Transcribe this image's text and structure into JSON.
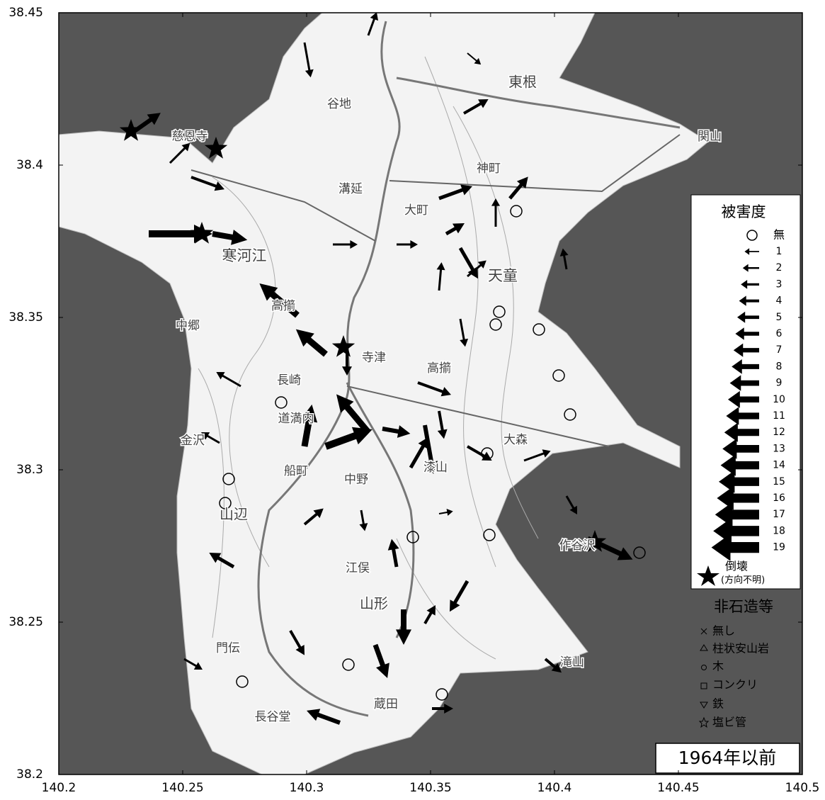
{
  "map": {
    "xlim": [
      140.2,
      140.5
    ],
    "ylim": [
      38.2,
      38.45
    ],
    "xticks": [
      140.2,
      140.25,
      140.3,
      140.35,
      140.4,
      140.45,
      140.5
    ],
    "yticks": [
      38.2,
      38.25,
      38.3,
      38.35,
      38.4,
      38.45
    ]
  },
  "places": [
    "東根",
    "谷地",
    "慈恩寺",
    "関山",
    "神町",
    "溝延",
    "大町",
    "寒河江",
    "天童",
    "中郷",
    "高擶",
    "寺津",
    "高擶",
    "長崎",
    "道満内",
    "金沢",
    "大森",
    "船町",
    "中野",
    "漆山",
    "山辺",
    "作谷沢",
    "江俣",
    "山形",
    "門伝",
    "滝山",
    "蔵田",
    "長谷堂"
  ],
  "legend": {
    "title": "被害度",
    "none": "無",
    "levels": [
      1,
      2,
      3,
      4,
      5,
      6,
      7,
      8,
      9,
      10,
      11,
      12,
      13,
      14,
      15,
      16,
      17,
      18,
      19
    ],
    "collapse": "倒壊",
    "collapse_note": "(方向不明)",
    "material_title": "非石造等",
    "materials": [
      "無し",
      "柱状安山岩",
      "木",
      "コンクリ",
      "鉄",
      "塩ビ管"
    ]
  },
  "stamp": "1964年以前"
}
